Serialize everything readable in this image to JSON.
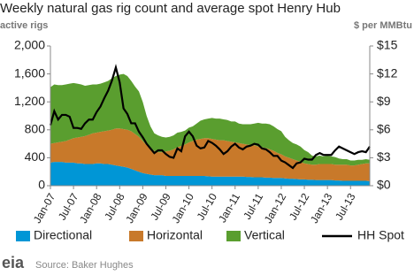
{
  "chart_data": {
    "type": "stacked-area-line",
    "title": "Weekly natural gas rig count and average spot Henry Hub",
    "y_label": "active rigs",
    "y2_label": "$ per MMBtu",
    "source": "Source: Baker Hughes",
    "source_logo": "eia",
    "categories": [
      "Jan-07",
      null,
      null,
      null,
      null,
      null,
      "Jul-07",
      null,
      null,
      null,
      null,
      null,
      "Jan-08",
      null,
      null,
      null,
      null,
      null,
      "Jul-08",
      null,
      null,
      null,
      null,
      null,
      "Jan-09",
      null,
      null,
      null,
      null,
      null,
      "Jul-09",
      null,
      null,
      null,
      null,
      null,
      "Jan-10",
      null,
      null,
      null,
      null,
      null,
      "Jul-10",
      null,
      null,
      null,
      null,
      null,
      "Jan-11",
      null,
      null,
      null,
      null,
      null,
      "Jul-11",
      null,
      null,
      null,
      null,
      null,
      "Jan-12",
      null,
      null,
      null,
      null,
      null,
      "Jul-12",
      null,
      null,
      null,
      null,
      null,
      "Jan-13",
      null,
      null,
      null,
      null,
      null,
      "Jul-13",
      null,
      null,
      null,
      null,
      null
    ],
    "series": [
      {
        "name": "Directional",
        "color": "#0096d6",
        "stack": true,
        "values": [
          330,
          340,
          340,
          340,
          330,
          330,
          330,
          320,
          320,
          310,
          310,
          310,
          320,
          320,
          310,
          310,
          300,
          290,
          280,
          270,
          260,
          240,
          220,
          200,
          180,
          170,
          160,
          150,
          150,
          150,
          140,
          140,
          140,
          140,
          140,
          140,
          140,
          140,
          140,
          140,
          140,
          135,
          130,
          130,
          130,
          130,
          130,
          130,
          130,
          130,
          130,
          125,
          125,
          120,
          120,
          120,
          115,
          115,
          110,
          110,
          110,
          105,
          100,
          100,
          95,
          90,
          90,
          85,
          85,
          80,
          80,
          80,
          80,
          80,
          75,
          75,
          70,
          70,
          70,
          70,
          70,
          70,
          70,
          65
        ]
      },
      {
        "name": "Horizontal",
        "color": "#c8792a",
        "stack": true,
        "values": [
          270,
          270,
          280,
          290,
          310,
          330,
          350,
          370,
          380,
          400,
          420,
          440,
          440,
          450,
          470,
          480,
          500,
          530,
          540,
          540,
          540,
          540,
          520,
          500,
          460,
          410,
          370,
          350,
          330,
          330,
          350,
          360,
          380,
          410,
          430,
          450,
          480,
          500,
          520,
          530,
          540,
          545,
          540,
          530,
          520,
          520,
          510,
          500,
          490,
          480,
          470,
          465,
          455,
          460,
          440,
          430,
          425,
          405,
          390,
          360,
          340,
          315,
          300,
          280,
          265,
          250,
          230,
          225,
          215,
          220,
          230,
          230,
          230,
          230,
          225,
          225,
          230,
          230,
          220,
          220,
          230,
          240,
          250,
          255
        ]
      },
      {
        "name": "Vertical",
        "color": "#5a9e2f",
        "stack": true,
        "values": [
          810,
          840,
          820,
          810,
          810,
          800,
          790,
          770,
          750,
          720,
          710,
          700,
          690,
          690,
          700,
          710,
          740,
          750,
          770,
          790,
          770,
          720,
          680,
          650,
          560,
          420,
          320,
          250,
          240,
          220,
          200,
          200,
          200,
          210,
          200,
          200,
          210,
          210,
          230,
          260,
          270,
          280,
          300,
          300,
          310,
          300,
          300,
          290,
          300,
          280,
          280,
          290,
          300,
          310,
          340,
          340,
          350,
          360,
          350,
          340,
          330,
          280,
          250,
          230,
          230,
          220,
          190,
          170,
          130,
          120,
          120,
          110,
          120,
          110,
          110,
          90,
          80,
          80,
          70,
          70,
          70,
          60,
          60,
          50
        ]
      },
      {
        "name": "HH Spot",
        "color": "#000000",
        "axis": "y2",
        "values": [
          6.5,
          8.0,
          7.1,
          7.6,
          7.6,
          7.4,
          6.2,
          6.2,
          6.1,
          6.7,
          7.1,
          7.1,
          7.9,
          8.5,
          9.4,
          10.2,
          11.3,
          12.7,
          11.1,
          8.3,
          7.7,
          6.7,
          6.7,
          5.8,
          5.2,
          4.5,
          4.0,
          3.5,
          3.8,
          3.8,
          3.4,
          3.1,
          3.0,
          4.0,
          3.7,
          5.3,
          5.8,
          5.3,
          4.3,
          4.0,
          4.1,
          4.8,
          4.6,
          4.3,
          3.9,
          3.4,
          3.7,
          4.2,
          4.5,
          4.1,
          3.9,
          4.2,
          4.3,
          4.5,
          4.4,
          4.0,
          3.9,
          3.6,
          3.2,
          3.2,
          2.7,
          2.5,
          2.2,
          1.9,
          2.4,
          2.5,
          2.9,
          2.8,
          2.8,
          3.3,
          3.5,
          3.3,
          3.3,
          3.3,
          3.8,
          4.2,
          4.0,
          3.8,
          3.6,
          3.4,
          3.6,
          3.7,
          3.6,
          4.2
        ]
      }
    ],
    "ylim": [
      0,
      2000
    ],
    "yticks": [
      {
        "value": 0,
        "label": "0"
      },
      {
        "value": 400,
        "label": "400"
      },
      {
        "value": 800,
        "label": "800"
      },
      {
        "value": 1200,
        "label": "1,200"
      },
      {
        "value": 1600,
        "label": "1,600"
      },
      {
        "value": 2000,
        "label": "2,000"
      }
    ],
    "y2lim": [
      0,
      15
    ],
    "y2ticks": [
      {
        "value": 0,
        "label": "$0"
      },
      {
        "value": 3,
        "label": "$3"
      },
      {
        "value": 6,
        "label": "$6"
      },
      {
        "value": 9,
        "label": "$9"
      },
      {
        "value": 12,
        "label": "$12"
      },
      {
        "value": 15,
        "label": "$15"
      }
    ],
    "grid": false,
    "legend": "bottom"
  }
}
